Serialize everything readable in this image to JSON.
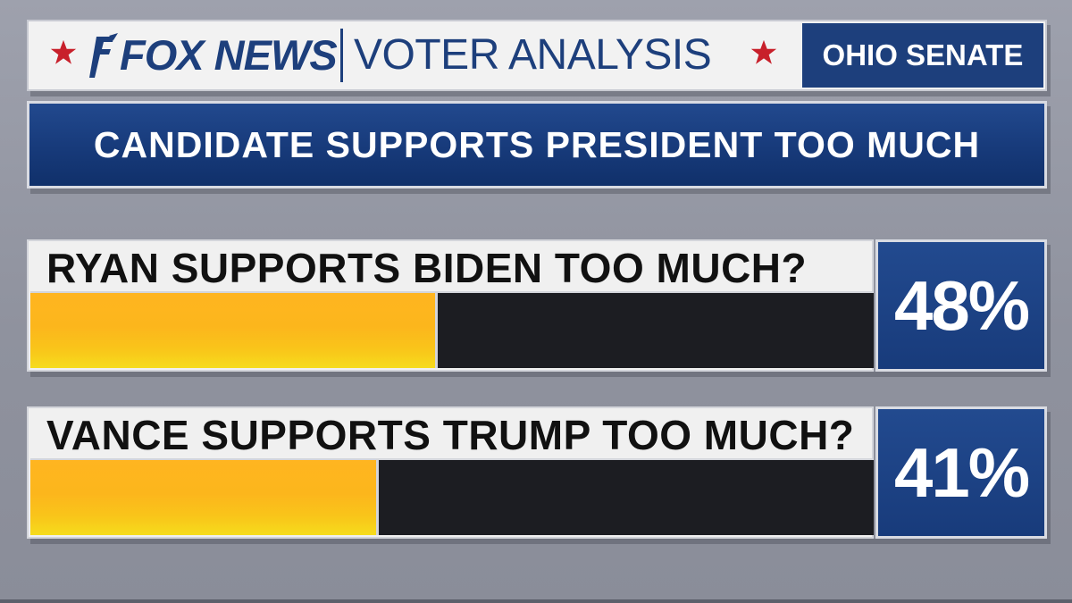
{
  "header": {
    "brand": "FOX NEWS",
    "section": "VOTER ANALYSIS",
    "race": "OHIO SENATE",
    "logo_icon": "fox-news-logo",
    "star_icon": "star-icon"
  },
  "title": "CANDIDATE SUPPORTS PRESIDENT TOO MUCH",
  "colors": {
    "navy": "#1d3f7c",
    "bar_fill": "#fcb61c",
    "bar_track": "#1c1d22",
    "star": "#c8202b"
  },
  "chart_data": {
    "type": "bar",
    "orientation": "horizontal",
    "categories": [
      "RYAN SUPPORTS BIDEN TOO MUCH?",
      "VANCE SUPPORTS TRUMP TOO MUCH?"
    ],
    "values": [
      48,
      41
    ],
    "value_labels": [
      "48%",
      "41%"
    ],
    "xlim": [
      0,
      100
    ],
    "title": "CANDIDATE SUPPORTS PRESIDENT TOO MUCH",
    "xlabel": "",
    "ylabel": "",
    "grid": false,
    "legend": "none"
  }
}
